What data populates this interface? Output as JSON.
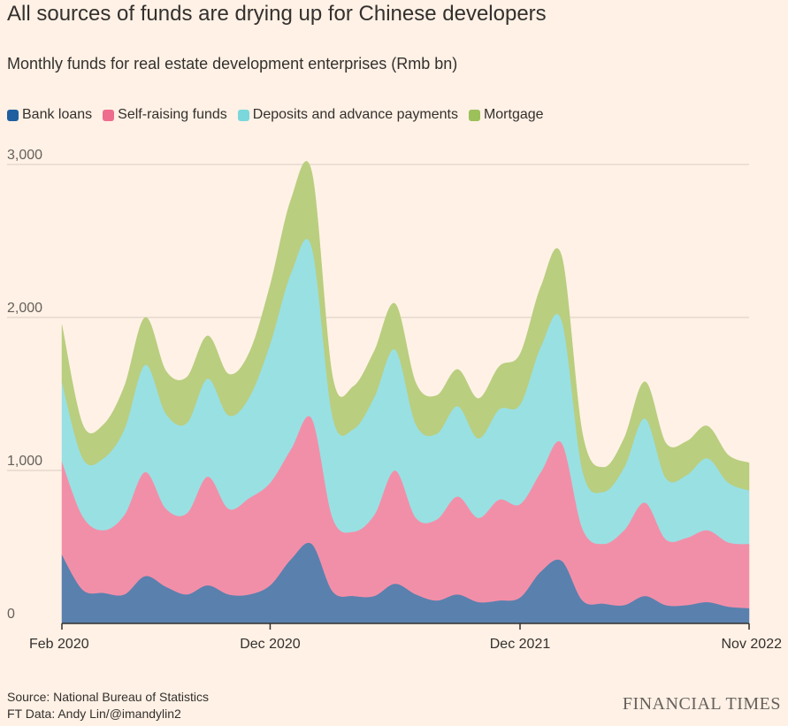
{
  "header": {
    "title": "All sources of funds are drying up for Chinese developers",
    "subtitle": "Monthly funds for real estate development enterprises (Rmb bn)"
  },
  "footer": {
    "source": "Source: National Bureau of Statistics",
    "credit": "FT Data: Andy Lin/@imandylin2",
    "brand": "FINANCIAL TIMES"
  },
  "chart_data": {
    "type": "area",
    "stacked": true,
    "x_start": "2020-02",
    "x_end": "2022-11",
    "x_ticks": [
      {
        "label": "Feb 2020",
        "index": 0
      },
      {
        "label": "Dec 2020",
        "index": 10
      },
      {
        "label": "Dec 2021",
        "index": 22
      },
      {
        "label": "Nov 2022",
        "index": 33
      }
    ],
    "ylim": [
      0,
      3000
    ],
    "y_ticks": [
      {
        "label": "0",
        "value": 0
      },
      {
        "label": "1,000",
        "value": 1000
      },
      {
        "label": "2,000",
        "value": 2000
      },
      {
        "label": "3,000",
        "value": 3000
      }
    ],
    "grid": true,
    "legend_position": "top-left",
    "series": [
      {
        "name": "Bank loans",
        "color": "#5A80AE",
        "values": [
          450,
          220,
          200,
          190,
          310,
          240,
          190,
          250,
          190,
          190,
          250,
          420,
          520,
          210,
          180,
          180,
          260,
          190,
          150,
          190,
          140,
          150,
          170,
          340,
          410,
          150,
          130,
          120,
          180,
          120,
          120,
          140,
          110,
          100
        ]
      },
      {
        "name": "Self-raising funds",
        "color": "#F28FA8",
        "values": [
          610,
          480,
          410,
          520,
          680,
          510,
          530,
          710,
          560,
          630,
          670,
          720,
          820,
          480,
          420,
          530,
          740,
          500,
          530,
          640,
          550,
          660,
          610,
          650,
          770,
          470,
          390,
          490,
          610,
          430,
          440,
          470,
          420,
          420
        ]
      },
      {
        "name": "Deposits and advance payments",
        "color": "#99E0E3",
        "values": [
          520,
          380,
          470,
          560,
          700,
          620,
          590,
          640,
          610,
          660,
          910,
          1150,
          1120,
          660,
          670,
          770,
          790,
          610,
          560,
          590,
          520,
          590,
          650,
          820,
          800,
          380,
          340,
          410,
          550,
          400,
          410,
          470,
          390,
          350
        ]
      },
      {
        "name": "Mortgage",
        "color": "#B9CE7F",
        "values": [
          370,
          220,
          220,
          280,
          310,
          280,
          300,
          280,
          270,
          290,
          380,
          480,
          490,
          260,
          280,
          300,
          300,
          270,
          250,
          240,
          260,
          280,
          330,
          390,
          420,
          240,
          160,
          190,
          240,
          230,
          220,
          210,
          180,
          180
        ]
      }
    ]
  }
}
